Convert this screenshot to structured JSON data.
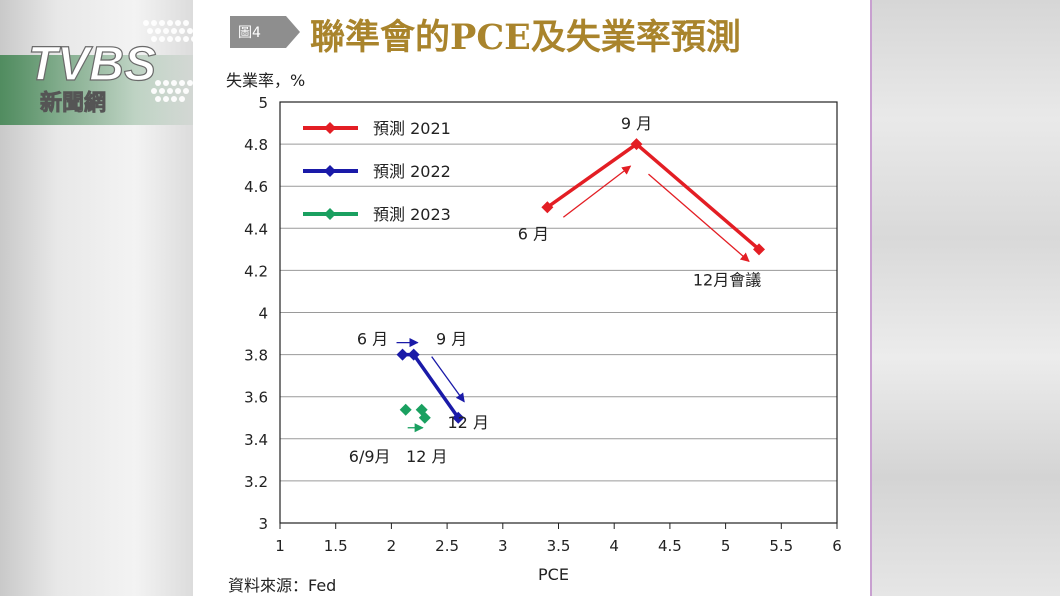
{
  "logo": {
    "brand": "TVBS",
    "sub": "新聞網"
  },
  "badge": "圖4",
  "chart_data": {
    "type": "line",
    "title": "聯準會的PCE及失業率預測",
    "xlabel": "PCE",
    "ylabel": "失業率，%",
    "xlim": [
      1,
      6
    ],
    "ylim": [
      3,
      5
    ],
    "xticks": [
      "1",
      "1.5",
      "2",
      "2.5",
      "3",
      "3.5",
      "4",
      "4.5",
      "5",
      "5.5",
      "6"
    ],
    "yticks": [
      "3",
      "3.2",
      "3.4",
      "3.6",
      "3.8",
      "4",
      "4.2",
      "4.4",
      "4.6",
      "4.8",
      "5"
    ],
    "grid": "horizontal",
    "legend": "top-left",
    "series": [
      {
        "name": "預測 2021",
        "color": "#e31e24",
        "points": [
          {
            "x": 3.4,
            "y": 4.5
          },
          {
            "x": 4.2,
            "y": 4.8
          },
          {
            "x": 5.3,
            "y": 4.3
          }
        ]
      },
      {
        "name": "預測 2022",
        "color": "#1a1aa8",
        "points": [
          {
            "x": 2.1,
            "y": 3.8
          },
          {
            "x": 2.2,
            "y": 3.8
          },
          {
            "x": 2.6,
            "y": 3.5
          }
        ]
      },
      {
        "name": "預測 2023",
        "color": "#1aa060",
        "points": [
          {
            "x": 2.2,
            "y": 3.5
          },
          {
            "x": 2.2,
            "y": 3.5
          },
          {
            "x": 2.3,
            "y": 3.5
          }
        ]
      }
    ],
    "annotations": [
      {
        "text": "6 月",
        "x": 3.4,
        "y": 4.5,
        "color": "#222"
      },
      {
        "text": "9 月",
        "x": 4.2,
        "y": 4.8,
        "color": "#222"
      },
      {
        "text": "12月會議",
        "x": 5.3,
        "y": 4.3,
        "color": "#222"
      },
      {
        "text": "6 月",
        "x": 2.1,
        "y": 3.8,
        "color": "#222"
      },
      {
        "text": "9 月",
        "x": 2.2,
        "y": 3.8,
        "color": "#222"
      },
      {
        "text": "12 月",
        "x": 2.6,
        "y": 3.5,
        "color": "#222"
      },
      {
        "text": "6/9月",
        "x": 2.2,
        "y": 3.5,
        "color": "#222"
      },
      {
        "text": "12 月",
        "x": 2.3,
        "y": 3.5,
        "color": "#222"
      }
    ]
  },
  "source": "資料來源：Fed"
}
